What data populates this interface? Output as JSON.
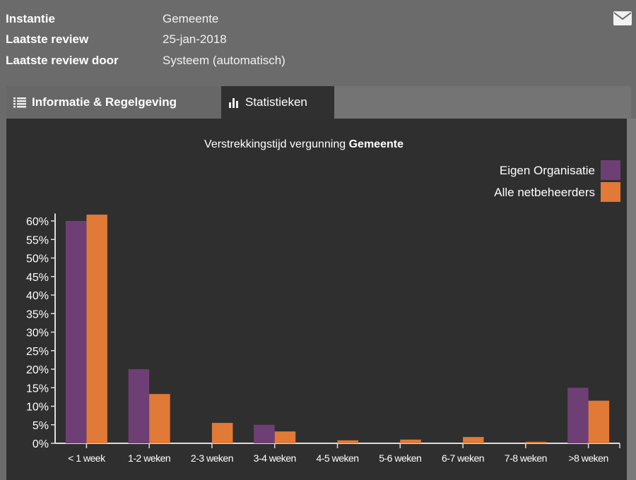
{
  "info": {
    "rows": [
      {
        "label": "Instantie",
        "value": "Gemeente"
      },
      {
        "label": "Laatste review",
        "value": "25-jan-2018"
      },
      {
        "label": "Laatste review door",
        "value": "Systeem (automatisch)"
      }
    ],
    "mail_icon": "envelope-icon"
  },
  "tabs": [
    {
      "label": "Informatie & Regelgeving",
      "icon": "list-icon",
      "active": false
    },
    {
      "label": "Statistieken",
      "icon": "bar-chart-icon",
      "active": true
    }
  ],
  "chart_data": {
    "type": "bar",
    "title_prefix": "Verstrekkingstijd vergunning",
    "title_bold": "Gemeente",
    "categories": [
      "< 1 week",
      "1-2 weken",
      "2-3 weken",
      "3-4 weken",
      "4-5 weken",
      "5-6 weken",
      "6-7 weken",
      "7-8 weken",
      ">8 weken"
    ],
    "series": [
      {
        "name": "Eigen Organisatie",
        "color": "#6e3f74",
        "values": [
          60,
          20,
          0,
          5,
          0,
          0,
          0,
          0,
          15
        ]
      },
      {
        "name": "Alle netbeheerders",
        "color": "#e07a36",
        "values": [
          61.7,
          13.3,
          5.5,
          3.2,
          0.8,
          1.0,
          1.7,
          0.4,
          11.5
        ]
      }
    ],
    "yticks": [
      "0%",
      "5%",
      "10%",
      "15%",
      "20%",
      "25%",
      "30%",
      "35%",
      "40%",
      "45%",
      "50%",
      "55%",
      "60%"
    ],
    "ylim": [
      0,
      62
    ],
    "legend": "top-right",
    "grid": false
  }
}
